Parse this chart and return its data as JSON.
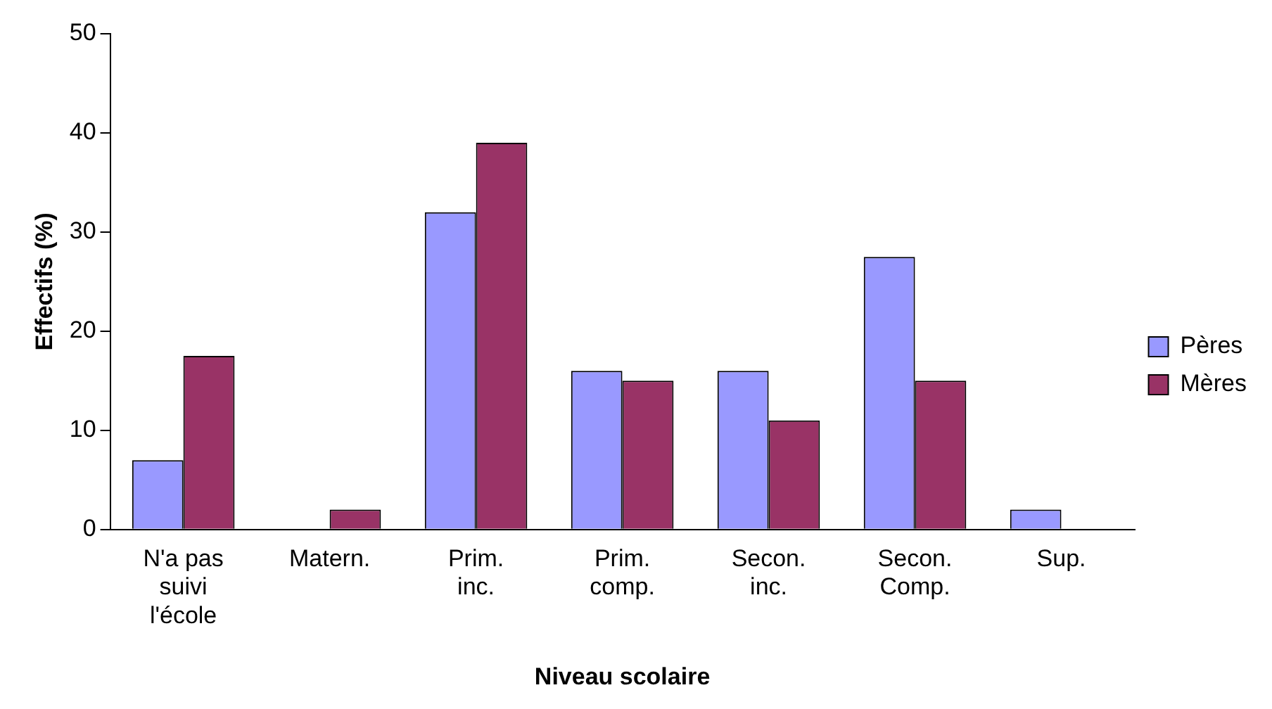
{
  "chart_data": {
    "type": "bar",
    "xlabel": "Niveau scolaire",
    "ylabel": "Effectifs (%)",
    "categories": [
      "N'a pas suivi l'école",
      "Matern.",
      "Prim. inc.",
      "Prim. comp.",
      "Secon. inc.",
      "Secon. Comp.",
      "Sup."
    ],
    "series": [
      {
        "name": "Pères",
        "color": "#9999ff",
        "values": [
          7,
          0,
          32,
          16,
          16,
          27.5,
          2
        ]
      },
      {
        "name": "Mères",
        "color": "#993366",
        "values": [
          17.5,
          2,
          39,
          15,
          11,
          15,
          0
        ]
      }
    ],
    "ylim": [
      0,
      50
    ],
    "yticks": [
      0,
      10,
      20,
      30,
      40,
      50
    ],
    "grid": false,
    "legend": "right"
  }
}
